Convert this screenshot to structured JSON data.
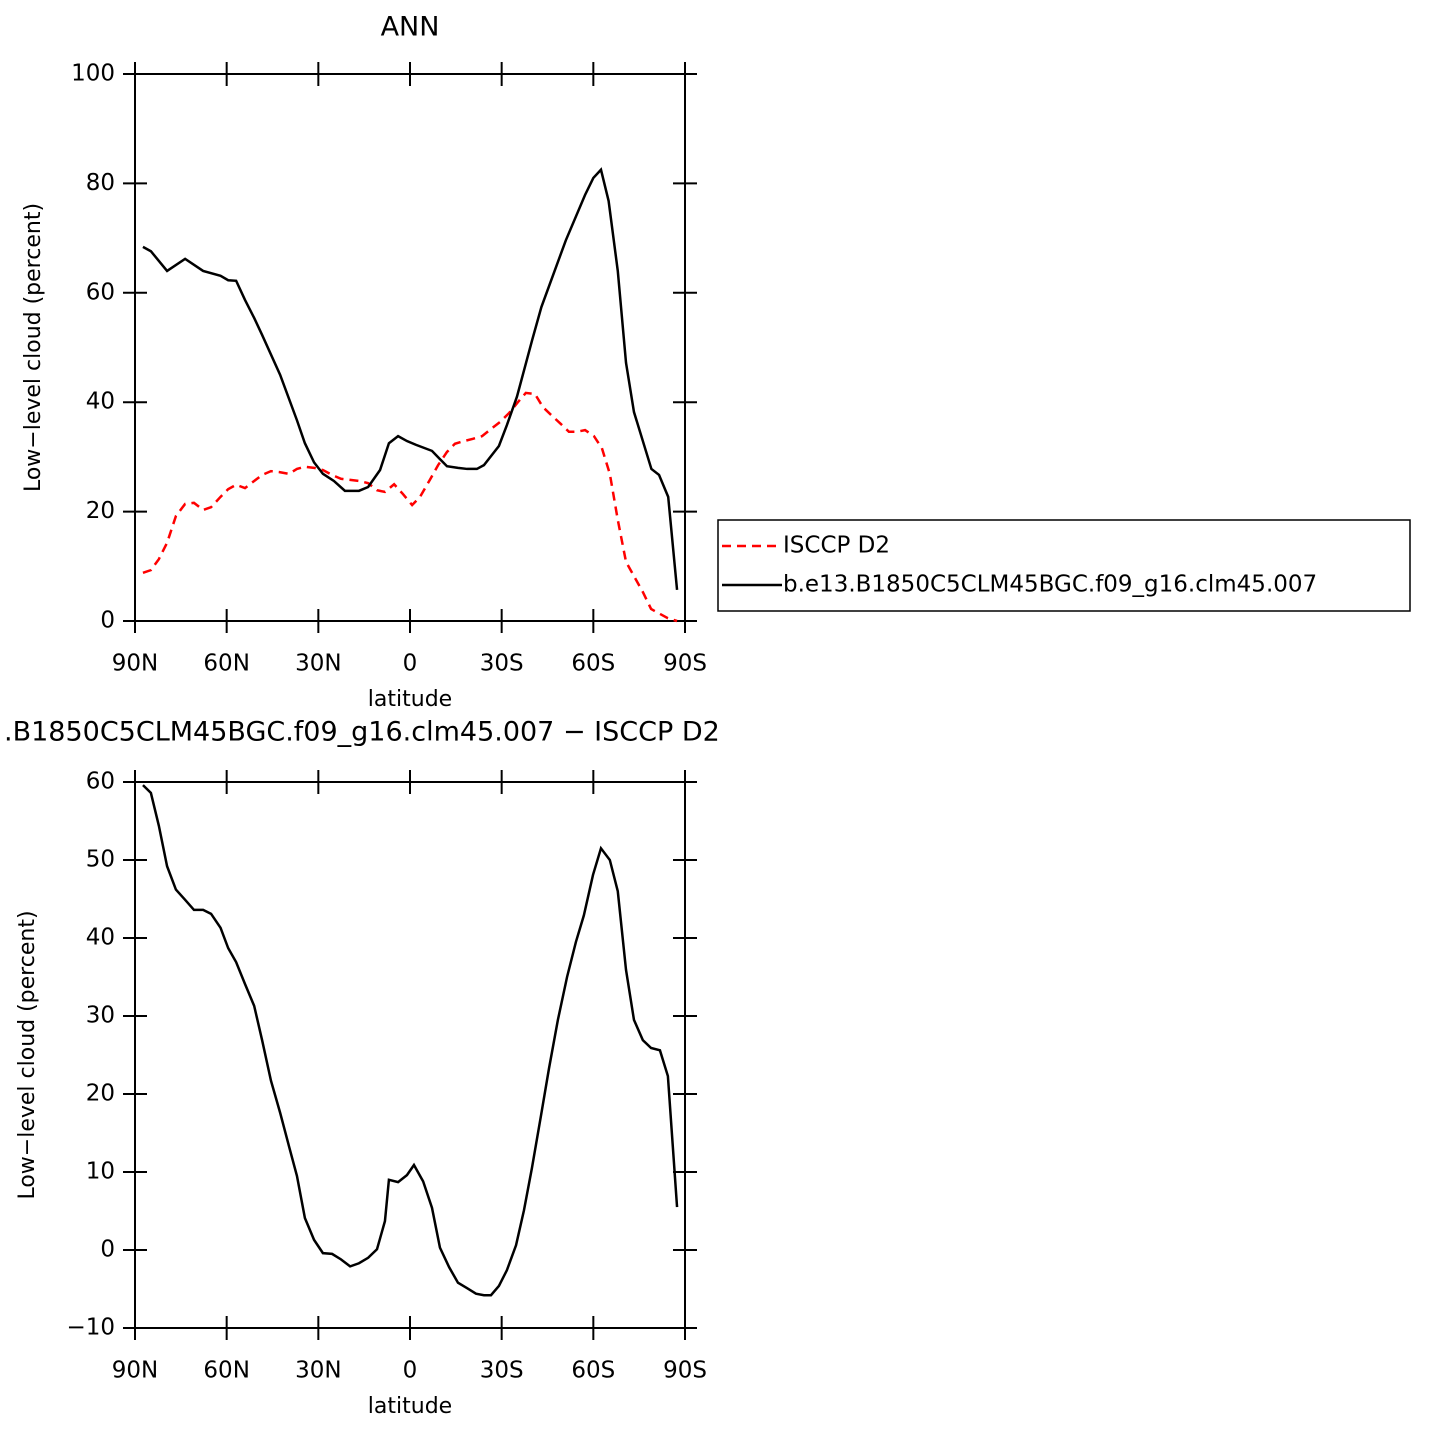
{
  "chart_data": [
    {
      "type": "line",
      "title": "ANN",
      "xlabel": "latitude",
      "ylabel": "Low−level cloud (percent)",
      "xlim": [
        90,
        -90
      ],
      "xticks": [
        {
          "value": 90,
          "label": "90N"
        },
        {
          "value": 60,
          "label": "60N"
        },
        {
          "value": 30,
          "label": "30N"
        },
        0,
        {
          "value": -30,
          "label": "30S"
        },
        {
          "value": -60,
          "label": "60S"
        },
        {
          "value": -90,
          "label": "90S"
        }
      ],
      "ylim": [
        0,
        100
      ],
      "yticks": [
        0,
        20,
        40,
        60,
        80,
        100
      ],
      "legend": "right",
      "series": [
        {
          "name": "ISCCP D2",
          "color": "#ff0000",
          "style": "dashed",
          "x": [
            87.4,
            84.8,
            82.2,
            79.5,
            76.6,
            73.6,
            70.7,
            67.7,
            65.1,
            62,
            59.5,
            56.9,
            54,
            51,
            48.4,
            45.5,
            42.5,
            39.6,
            37,
            34.4,
            31.4,
            28.5,
            25.5,
            22.6,
            19.6,
            16.7,
            13.7,
            10.8,
            8.2,
            5.2,
            2.3,
            -0.7,
            -3.3,
            -6.5,
            -9.2,
            -12.1,
            -14.7,
            -17.7,
            -20.6,
            -23.6,
            -26.5,
            -29.5,
            -32.4,
            -35.3,
            -37.9,
            -40.9,
            -43.5,
            -46.5,
            -49.4,
            -52,
            -54.6,
            -57.3,
            -60.2,
            -62.8,
            -65.4,
            -68,
            -70.7,
            -73.3,
            -76.2,
            -78.9,
            -81.8,
            -84.4,
            -87.4
          ],
          "values": [
            8.8,
            9.3,
            11.3,
            14.3,
            19.2,
            21.4,
            21.6,
            20.3,
            20.8,
            22.7,
            24.1,
            24.9,
            24.3,
            25.6,
            26.7,
            27.4,
            27.2,
            26.9,
            27.8,
            28.2,
            28,
            27.6,
            26.7,
            26,
            25.8,
            25.6,
            25.2,
            23.9,
            23.6,
            25,
            23.2,
            21.2,
            22.7,
            25.8,
            28.5,
            30.9,
            32.4,
            32.9,
            33.3,
            33.8,
            35.1,
            36.4,
            38,
            40,
            41.7,
            41.5,
            39.1,
            37.5,
            36,
            34.6,
            34.6,
            34.9,
            33.8,
            31.6,
            26.9,
            18.5,
            10.8,
            8.2,
            5.3,
            2.2,
            1.3,
            0.5,
            0
          ]
        },
        {
          "name": "b.e13.B1850C5CLM45BGC.f09_g16.clm45.007",
          "color": "#000000",
          "style": "solid",
          "x": [
            87.4,
            84.8,
            79.5,
            73.6,
            67.7,
            62,
            59.5,
            56.9,
            54,
            51,
            48.4,
            42.5,
            37,
            34.4,
            31.4,
            28.5,
            24.9,
            21.3,
            16.7,
            13.7,
            9.8,
            6.9,
            3.9,
            1,
            -2,
            -7.2,
            -9.8,
            -12.1,
            -15.7,
            -18.7,
            -21.9,
            -24.2,
            -29.1,
            -31.7,
            -35,
            -40,
            -43,
            -51,
            -57.3,
            -60,
            -62.5,
            -65,
            -68,
            -70.7,
            -73.3,
            -79,
            -81.5,
            -84.5,
            -87.4
          ],
          "values": [
            68.4,
            67.6,
            64,
            66.2,
            64,
            63.1,
            62.3,
            62.2,
            58.7,
            55.4,
            52.3,
            45,
            36.7,
            32.5,
            29,
            26.9,
            25.6,
            23.8,
            23.8,
            24.5,
            27.6,
            32.5,
            33.8,
            32.9,
            32.2,
            31.1,
            29.6,
            28.3,
            28,
            27.8,
            27.8,
            28.5,
            32,
            35.8,
            41,
            51.4,
            57.4,
            69.6,
            77.9,
            81,
            82.5,
            76.8,
            64,
            47.2,
            38.2,
            27.8,
            26.7,
            22.7,
            5.7
          ]
        }
      ]
    },
    {
      "type": "line",
      "title": ".B1850C5CLM45BGC.f09_g16.clm45.007 − ISCCP D2",
      "xlabel": "latitude",
      "ylabel": "Low−level cloud (percent)",
      "xlim": [
        90,
        -90
      ],
      "xticks": [
        {
          "value": 90,
          "label": "90N"
        },
        {
          "value": 60,
          "label": "60N"
        },
        {
          "value": 30,
          "label": "30N"
        },
        0,
        {
          "value": -30,
          "label": "30S"
        },
        {
          "value": -60,
          "label": "60S"
        },
        {
          "value": -90,
          "label": "90S"
        }
      ],
      "ylim": [
        -10,
        60
      ],
      "yticks": [
        {
          "value": -10,
          "label": "−10"
        },
        0,
        10,
        20,
        30,
        40,
        50,
        60
      ],
      "series": [
        {
          "color": "#000000",
          "style": "solid",
          "x": [
            87.4,
            84.8,
            82.2,
            79.5,
            76.6,
            73.6,
            70.7,
            67.7,
            65.1,
            62,
            59.5,
            56.9,
            54,
            51,
            48.4,
            45.5,
            42.5,
            39.6,
            37,
            34.4,
            31.4,
            28.5,
            25.5,
            22.6,
            19.6,
            16.7,
            13.7,
            10.8,
            8.2,
            6.9,
            3.9,
            1,
            -1.3,
            -4.3,
            -7.2,
            -9.8,
            -12.8,
            -15.7,
            -18.7,
            -21.6,
            -24.2,
            -26.5,
            -29.1,
            -31.7,
            -34.7,
            -37.3,
            -39.9,
            -42.9,
            -45.5,
            -48.4,
            -51.4,
            -54.3,
            -56.9,
            -59.9,
            -62.5,
            -65.4,
            -68,
            -70.7,
            -73.3,
            -76.2,
            -78.9,
            -81.8,
            -84.4,
            -87.4
          ],
          "values": [
            59.6,
            58.6,
            54.4,
            49.2,
            46.2,
            44.9,
            43.6,
            43.6,
            43.1,
            41.3,
            38.7,
            36.9,
            34.1,
            31.3,
            26.9,
            21.7,
            17.6,
            13.3,
            9.5,
            4.1,
            1.3,
            -0.4,
            -0.5,
            -1.2,
            -2.1,
            -1.7,
            -1,
            0.1,
            3.7,
            9,
            8.7,
            9.6,
            10.9,
            8.8,
            5.4,
            0.3,
            -2.2,
            -4.2,
            -4.9,
            -5.6,
            -5.8,
            -5.8,
            -4.6,
            -2.6,
            0.6,
            5.1,
            10.5,
            17.3,
            23.3,
            29.5,
            35,
            39.5,
            42.9,
            48.1,
            51.5,
            50,
            46,
            35.9,
            29.5,
            26.9,
            25.9,
            25.6,
            22.3,
            5.5
          ]
        }
      ]
    }
  ]
}
